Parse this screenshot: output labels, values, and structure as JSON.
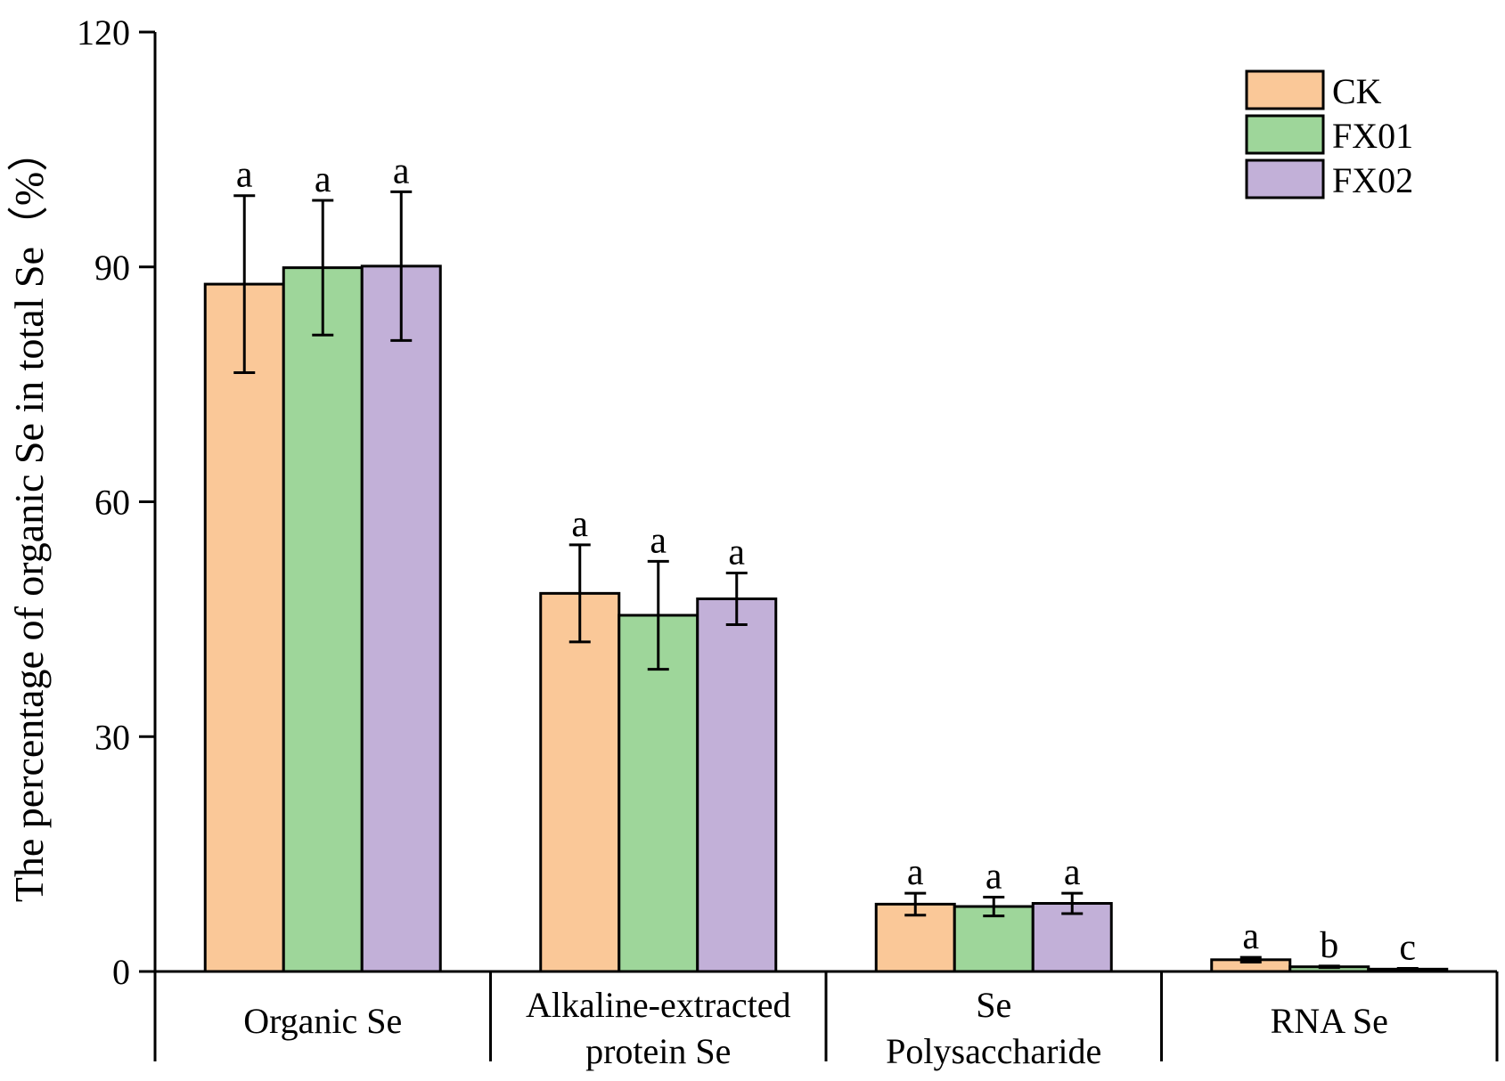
{
  "chart_data": {
    "type": "bar",
    "title": "",
    "xlabel": "",
    "ylabel": "The percentage of organic Se in total Se（%）",
    "ylim": [
      0,
      120
    ],
    "yticks": [
      0,
      30,
      60,
      90,
      120
    ],
    "yticks_labels": [
      "0",
      "30",
      "60",
      "90",
      "120"
    ],
    "grid": false,
    "legend_position": "top-right",
    "categories": [
      [
        "Organic Se"
      ],
      [
        "Alkaline-extracted",
        "protein Se"
      ],
      [
        "Se",
        "Polysaccharide"
      ],
      [
        "RNA Se"
      ]
    ],
    "series": [
      {
        "name": "CK",
        "color": "#FAC898",
        "values": [
          87.8,
          48.3,
          8.6,
          1.5
        ],
        "errors": [
          11.3,
          6.2,
          1.4,
          0.3
        ],
        "significance": [
          "a",
          "a",
          "a",
          "a"
        ]
      },
      {
        "name": "FX01",
        "color": "#9ED69A",
        "values": [
          89.9,
          45.5,
          8.3,
          0.6
        ],
        "errors": [
          8.6,
          6.9,
          1.2,
          0.1
        ],
        "significance": [
          "a",
          "a",
          "a",
          "b"
        ]
      },
      {
        "name": "FX02",
        "color": "#C2B0D8",
        "values": [
          90.1,
          47.6,
          8.7,
          0.3
        ],
        "errors": [
          9.5,
          3.3,
          1.3,
          0.1
        ],
        "significance": [
          "a",
          "a",
          "a",
          "c"
        ]
      }
    ]
  }
}
